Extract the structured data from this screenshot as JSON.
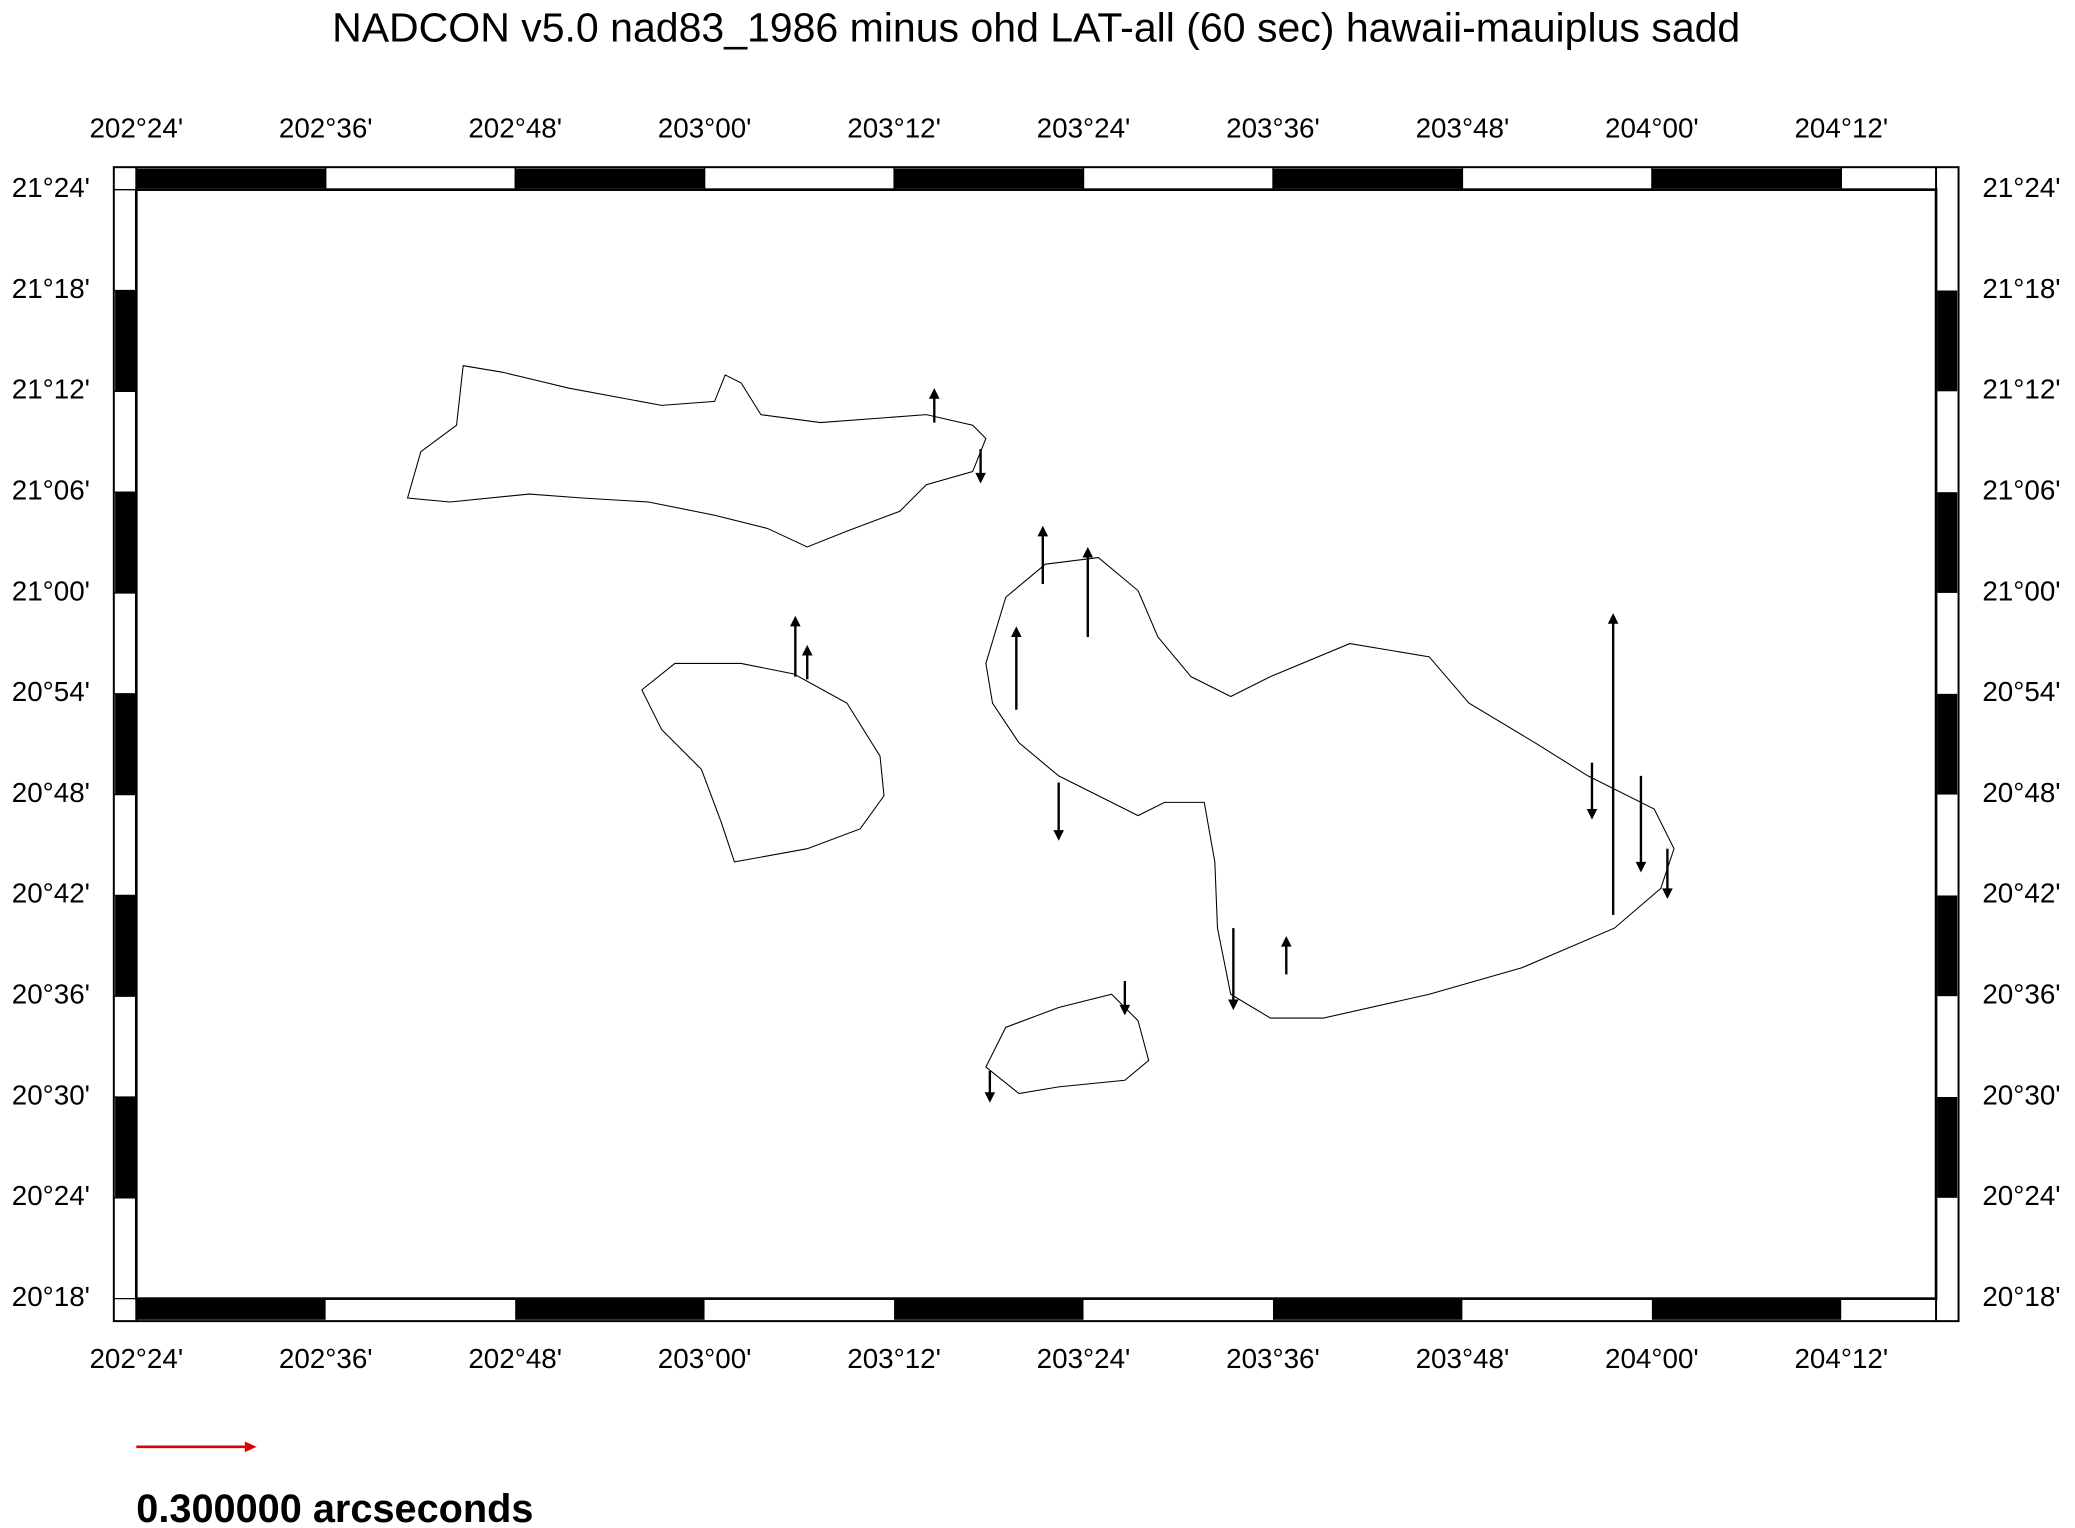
{
  "title": "NADCON v5.0 nad83_1986 minus ohd LAT-all (60 sec) hawaii-mauiplus sadd",
  "map": {
    "xlim": [
      202.4,
      204.3
    ],
    "ylim": [
      20.3,
      21.4
    ],
    "xticks": [
      {
        "value": 202.4,
        "label": "202°24'"
      },
      {
        "value": 202.6,
        "label": "202°36'"
      },
      {
        "value": 202.8,
        "label": "202°48'"
      },
      {
        "value": 203.0,
        "label": "203°00'"
      },
      {
        "value": 203.2,
        "label": "203°12'"
      },
      {
        "value": 203.4,
        "label": "203°24'"
      },
      {
        "value": 203.6,
        "label": "203°36'"
      },
      {
        "value": 203.8,
        "label": "203°48'"
      },
      {
        "value": 204.0,
        "label": "204°00'"
      },
      {
        "value": 204.2,
        "label": "204°12'"
      }
    ],
    "yticks": [
      {
        "value": 20.3,
        "label": "20°18'"
      },
      {
        "value": 20.4,
        "label": "20°24'"
      },
      {
        "value": 20.5,
        "label": "20°30'"
      },
      {
        "value": 20.6,
        "label": "20°36'"
      },
      {
        "value": 20.7,
        "label": "20°42'"
      },
      {
        "value": 20.8,
        "label": "20°48'"
      },
      {
        "value": 20.9,
        "label": "20°54'"
      },
      {
        "value": 21.0,
        "label": "21°00'"
      },
      {
        "value": 21.1,
        "label": "21°06'"
      },
      {
        "value": 21.2,
        "label": "21°12'"
      },
      {
        "value": 21.3,
        "label": "21°18'"
      },
      {
        "value": 21.4,
        "label": "21°24'"
      }
    ]
  },
  "legend": {
    "label": "0.300000 arcseconds",
    "color": "#e00000"
  }
}
